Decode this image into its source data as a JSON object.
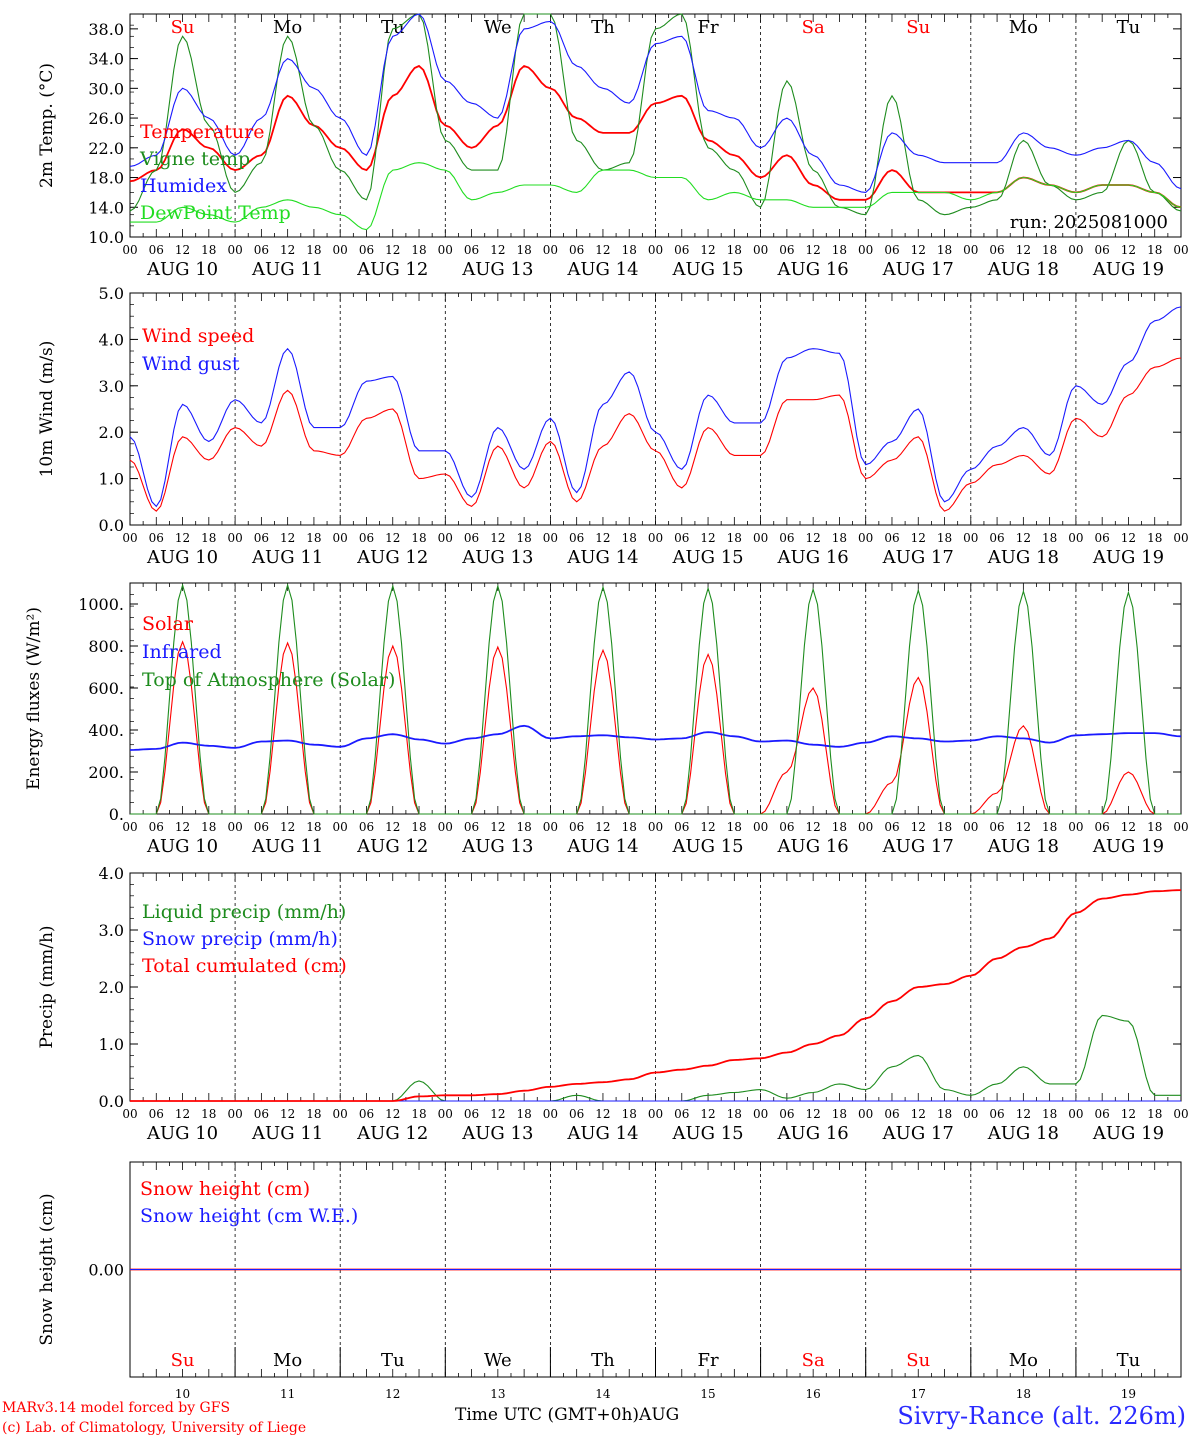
{
  "colors": {
    "red": "#ff0000",
    "green": "#1e8c1e",
    "blue": "#1a1aff",
    "lightgreen": "#22dd22",
    "black": "#000000"
  },
  "footer": {
    "model": "MARv3.14 model forced by GFS",
    "credit": "(c) Lab. of Climatology, University of Liege",
    "axis_title": "Time UTC (GMT+0h)",
    "month": "AUG",
    "station": "Sivry-Rance (alt. 226m)"
  },
  "chart_data": [
    {
      "type": "line",
      "ylabel": "2m Temp. (°C)",
      "ylim": [
        10,
        40
      ],
      "yticks": [
        "10.0",
        "14.0",
        "18.0",
        "22.0",
        "26.0",
        "30.0",
        "34.0",
        "38.0"
      ],
      "legend": [
        "Temperature",
        "Vigne temp",
        "Humidex",
        "DewPoint Temp"
      ],
      "annotation": "run: 2025081000",
      "x_hours": [
        0,
        6,
        12,
        18,
        24,
        30,
        36,
        42,
        48,
        54,
        60,
        66,
        72,
        78,
        84,
        90,
        96,
        102,
        108,
        114,
        120,
        126,
        132,
        138,
        144,
        150,
        156,
        162,
        168,
        174,
        180,
        186,
        192,
        198,
        204,
        210,
        216,
        222,
        228,
        234,
        240
      ],
      "series": [
        {
          "name": "Temperature",
          "color": "red",
          "values": [
            17.5,
            19,
            24.5,
            22,
            19,
            21,
            29,
            25,
            22,
            19,
            29,
            33,
            25,
            22,
            25,
            33,
            30,
            26,
            24,
            24,
            28,
            29,
            23,
            21,
            18,
            21,
            17,
            15,
            15,
            19,
            16,
            16,
            16,
            16,
            18,
            17,
            16,
            17,
            17,
            16,
            14
          ]
        },
        {
          "name": "Vigne temp",
          "color": "green",
          "values": [
            13.5,
            19,
            37,
            25,
            16,
            20,
            37,
            25,
            19,
            15,
            38,
            40,
            23,
            19,
            19,
            40,
            40,
            23,
            19,
            20,
            38,
            40,
            22,
            19,
            14,
            31,
            19,
            14,
            13,
            29,
            15,
            13,
            14,
            15,
            23,
            17,
            15,
            16,
            23,
            16,
            13.5
          ]
        },
        {
          "name": "Humidex",
          "color": "blue",
          "values": [
            19.5,
            21,
            30,
            26,
            21,
            26,
            34,
            30,
            26,
            21,
            37,
            40,
            31,
            28,
            26,
            38,
            39,
            33,
            30,
            28,
            36,
            37,
            27,
            26,
            22,
            26,
            21,
            17,
            16,
            24,
            21,
            20,
            20,
            20,
            24,
            22,
            21,
            22,
            23,
            20,
            16.5
          ]
        },
        {
          "name": "DewPoint Temp",
          "color": "lightgreen",
          "values": [
            12,
            12,
            14,
            13,
            12,
            14,
            15,
            14,
            13,
            11,
            19,
            20,
            19,
            15,
            16,
            17,
            17,
            16,
            19,
            19,
            18,
            18,
            15,
            16,
            15,
            15,
            14,
            14,
            14,
            16,
            16,
            16,
            15,
            16,
            18,
            17,
            16,
            17,
            17,
            16,
            14
          ]
        }
      ]
    },
    {
      "type": "line",
      "ylabel": "10m Wind (m/s)",
      "ylim": [
        0,
        5
      ],
      "yticks": [
        "0.0",
        "1.0",
        "2.0",
        "3.0",
        "4.0",
        "5.0"
      ],
      "legend": [
        "Wind speed",
        "Wind gust"
      ],
      "x_hours": [
        0,
        6,
        12,
        18,
        24,
        30,
        36,
        42,
        48,
        54,
        60,
        66,
        72,
        78,
        84,
        90,
        96,
        102,
        108,
        114,
        120,
        126,
        132,
        138,
        144,
        150,
        156,
        162,
        168,
        174,
        180,
        186,
        192,
        198,
        204,
        210,
        216,
        222,
        228,
        234,
        240
      ],
      "series": [
        {
          "name": "Wind speed",
          "color": "red",
          "values": [
            1.4,
            0.3,
            1.9,
            1.4,
            2.1,
            1.7,
            2.9,
            1.6,
            1.5,
            2.3,
            2.5,
            1.0,
            1.1,
            0.4,
            1.7,
            0.8,
            1.8,
            0.5,
            1.7,
            2.4,
            1.6,
            0.8,
            2.1,
            1.5,
            1.5,
            2.7,
            2.7,
            2.8,
            1.0,
            1.4,
            1.9,
            0.3,
            0.9,
            1.3,
            1.5,
            1.1,
            2.3,
            1.9,
            2.8,
            3.4,
            3.6
          ]
        },
        {
          "name": "Wind gust",
          "color": "blue",
          "values": [
            1.9,
            0.4,
            2.6,
            1.8,
            2.7,
            2.2,
            3.8,
            2.1,
            2.1,
            3.1,
            3.2,
            1.6,
            1.6,
            0.6,
            2.1,
            1.2,
            2.3,
            0.7,
            2.6,
            3.3,
            2.0,
            1.2,
            2.8,
            2.2,
            2.2,
            3.6,
            3.8,
            3.7,
            1.3,
            1.8,
            2.5,
            0.5,
            1.2,
            1.7,
            2.1,
            1.5,
            3.0,
            2.6,
            3.5,
            4.4,
            4.7
          ]
        }
      ]
    },
    {
      "type": "line",
      "ylabel": "Energy fluxes (W/m²)",
      "ylim": [
        0,
        1100
      ],
      "yticks": [
        "0.",
        "200.",
        "400.",
        "600.",
        "800.",
        "1000."
      ],
      "legend": [
        "Solar",
        "Infrared",
        "Top of Atmosphere (Solar)"
      ],
      "x_hours": [
        0,
        6,
        12,
        18,
        24,
        30,
        36,
        42,
        48,
        54,
        60,
        66,
        72,
        78,
        84,
        90,
        96,
        102,
        108,
        114,
        120,
        126,
        132,
        138,
        144,
        150,
        156,
        162,
        168,
        174,
        180,
        186,
        192,
        198,
        204,
        210,
        216,
        222,
        228,
        234,
        240
      ],
      "series": [
        {
          "name": "Solar",
          "color": "red",
          "values": [
            0,
            0,
            820,
            0,
            0,
            0,
            815,
            0,
            0,
            0,
            800,
            0,
            0,
            0,
            795,
            0,
            0,
            0,
            780,
            0,
            0,
            0,
            760,
            0,
            0,
            200,
            600,
            0,
            0,
            150,
            650,
            0,
            0,
            100,
            420,
            0,
            0,
            0,
            200,
            0,
            0
          ]
        },
        {
          "name": "Infrared",
          "color": "blue",
          "values": [
            305,
            310,
            340,
            325,
            315,
            345,
            350,
            330,
            320,
            360,
            380,
            355,
            335,
            360,
            380,
            420,
            360,
            370,
            375,
            365,
            355,
            360,
            390,
            370,
            345,
            350,
            330,
            320,
            340,
            370,
            360,
            345,
            350,
            370,
            360,
            340,
            375,
            380,
            385,
            385,
            370
          ]
        },
        {
          "name": "Top of Atmosphere (Solar)",
          "color": "green",
          "values": [
            0,
            0,
            1090,
            0,
            0,
            0,
            1090,
            0,
            0,
            0,
            1085,
            0,
            0,
            0,
            1085,
            0,
            0,
            0,
            1080,
            0,
            0,
            0,
            1075,
            0,
            0,
            0,
            1070,
            0,
            0,
            0,
            1065,
            0,
            0,
            0,
            1060,
            0,
            0,
            0,
            1055,
            0,
            0
          ]
        }
      ]
    },
    {
      "type": "line",
      "ylabel": "Precip (mm/h)",
      "ylim": [
        0,
        4
      ],
      "yticks": [
        "0.0",
        "1.0",
        "2.0",
        "3.0",
        "4.0"
      ],
      "legend": [
        "Liquid precip (mm/h)",
        "Snow precip (mm/h)",
        "Total cumulated (cm)"
      ],
      "x_hours": [
        0,
        6,
        12,
        18,
        24,
        30,
        36,
        42,
        48,
        54,
        60,
        66,
        72,
        78,
        84,
        90,
        96,
        102,
        108,
        114,
        120,
        126,
        132,
        138,
        144,
        150,
        156,
        162,
        168,
        174,
        180,
        186,
        192,
        198,
        204,
        210,
        216,
        222,
        228,
        234,
        240
      ],
      "series": [
        {
          "name": "Liquid precip (mm/h)",
          "color": "green",
          "values": [
            0,
            0,
            0,
            0,
            0,
            0,
            0,
            0,
            0,
            0,
            0,
            0.35,
            0,
            0,
            0,
            0,
            0,
            0.1,
            0,
            0,
            0,
            0,
            0.1,
            0.15,
            0.2,
            0.05,
            0.15,
            0.3,
            0.2,
            0.6,
            0.8,
            0.2,
            0.1,
            0.3,
            0.6,
            0.3,
            0.3,
            1.5,
            1.4,
            0.1,
            0.1
          ]
        },
        {
          "name": "Snow precip (mm/h)",
          "color": "blue",
          "values": [
            0,
            0,
            0,
            0,
            0,
            0,
            0,
            0,
            0,
            0,
            0,
            0,
            0,
            0,
            0,
            0,
            0,
            0,
            0,
            0,
            0,
            0,
            0,
            0,
            0,
            0,
            0,
            0,
            0,
            0,
            0,
            0,
            0,
            0,
            0,
            0,
            0,
            0,
            0,
            0,
            0
          ]
        },
        {
          "name": "Total cumulated (cm)",
          "color": "red",
          "values": [
            0,
            0,
            0,
            0,
            0,
            0,
            0,
            0,
            0,
            0,
            0,
            0.08,
            0.1,
            0.1,
            0.12,
            0.18,
            0.25,
            0.3,
            0.33,
            0.38,
            0.5,
            0.55,
            0.62,
            0.72,
            0.75,
            0.85,
            1.0,
            1.15,
            1.45,
            1.75,
            2.0,
            2.05,
            2.2,
            2.5,
            2.7,
            2.85,
            3.3,
            3.55,
            3.62,
            3.68,
            3.7
          ]
        }
      ]
    },
    {
      "type": "line",
      "ylabel": "Snow height (cm)",
      "ylim": [
        -1,
        1
      ],
      "yticks": [
        "0.00"
      ],
      "legend": [
        "Snow height (cm)",
        "Snow height (cm W.E.)"
      ],
      "x_hours": [
        0,
        240
      ],
      "series": [
        {
          "name": "Snow height (cm)",
          "color": "red",
          "values": [
            0,
            0
          ]
        },
        {
          "name": "Snow height (cm W.E.)",
          "color": "blue",
          "values": [
            0,
            0
          ]
        }
      ]
    }
  ],
  "hour_ticks": [
    "00",
    "06",
    "12",
    "18"
  ],
  "date_labels": [
    "AUG 10",
    "AUG 11",
    "AUG 12",
    "AUG 13",
    "AUG 14",
    "AUG 15",
    "AUG 16",
    "AUG 17",
    "AUG 18",
    "AUG 19"
  ],
  "day_names": [
    "Su",
    "Mo",
    "Tu",
    "We",
    "Th",
    "Fr",
    "Sa",
    "Su",
    "Mo",
    "Tu"
  ],
  "weekend": [
    true,
    false,
    false,
    false,
    false,
    false,
    true,
    true,
    false,
    false
  ],
  "day_numbers": [
    "10",
    "11",
    "12",
    "13",
    "14",
    "15",
    "16",
    "17",
    "18",
    "19"
  ]
}
